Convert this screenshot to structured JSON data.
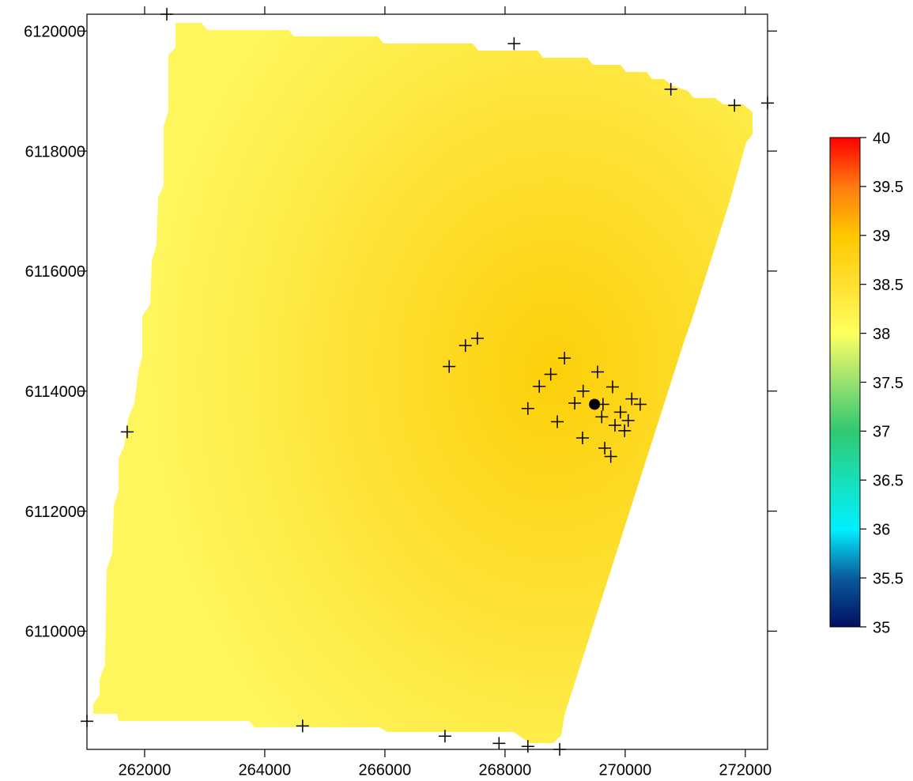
{
  "chart_data": {
    "type": "contour-map",
    "xlim": [
      261040,
      272370
    ],
    "ylim": [
      6108030,
      6120280
    ],
    "xticks": [
      262000,
      264000,
      266000,
      268000,
      270000,
      272000
    ],
    "yticks": [
      6110000,
      6112000,
      6114000,
      6116000,
      6118000,
      6120000
    ],
    "clim": [
      35,
      40
    ],
    "cticks": [
      35,
      35.5,
      36,
      36.5,
      37,
      37.5,
      38,
      38.5,
      39,
      39.5,
      40
    ],
    "colorscale": [
      {
        "value": 35,
        "color": "#001060"
      },
      {
        "value": 35.5,
        "color": "#0a5a9c"
      },
      {
        "value": 36,
        "color": "#00f0ff"
      },
      {
        "value": 36.5,
        "color": "#18e0b8"
      },
      {
        "value": 37,
        "color": "#30c870"
      },
      {
        "value": 37.5,
        "color": "#98e070"
      },
      {
        "value": 38,
        "color": "#ffff60"
      },
      {
        "value": 38.5,
        "color": "#ffe030"
      },
      {
        "value": 39,
        "color": "#ffc800"
      },
      {
        "value": 39.5,
        "color": "#ff7a10"
      },
      {
        "value": 40,
        "color": "#ff0000"
      }
    ],
    "points": {
      "x": [
        262370,
        268150,
        270760,
        271820,
        272370,
        261710,
        267070,
        267340,
        267540,
        268990,
        268760,
        268570,
        269540,
        269300,
        269790,
        268380,
        269160,
        269630,
        269610,
        269920,
        270110,
        270250,
        269830,
        270050,
        269990,
        268870,
        269290,
        269660,
        269760,
        264630,
        267000,
        267900,
        268380,
        268910,
        261040
      ],
      "y": [
        6120280,
        6119790,
        6119030,
        6118760,
        6118800,
        6113320,
        6114410,
        6114760,
        6114880,
        6114550,
        6114280,
        6114080,
        6114320,
        6114000,
        6114070,
        6113710,
        6113800,
        6113780,
        6113570,
        6113650,
        6113870,
        6113780,
        6113430,
        6113510,
        6113340,
        6113490,
        6113220,
        6113050,
        6112910,
        6108420,
        6108250,
        6108130,
        6108080,
        6108030,
        6108500
      ]
    },
    "highlight": {
      "x": 269490,
      "y": 6113780
    }
  }
}
